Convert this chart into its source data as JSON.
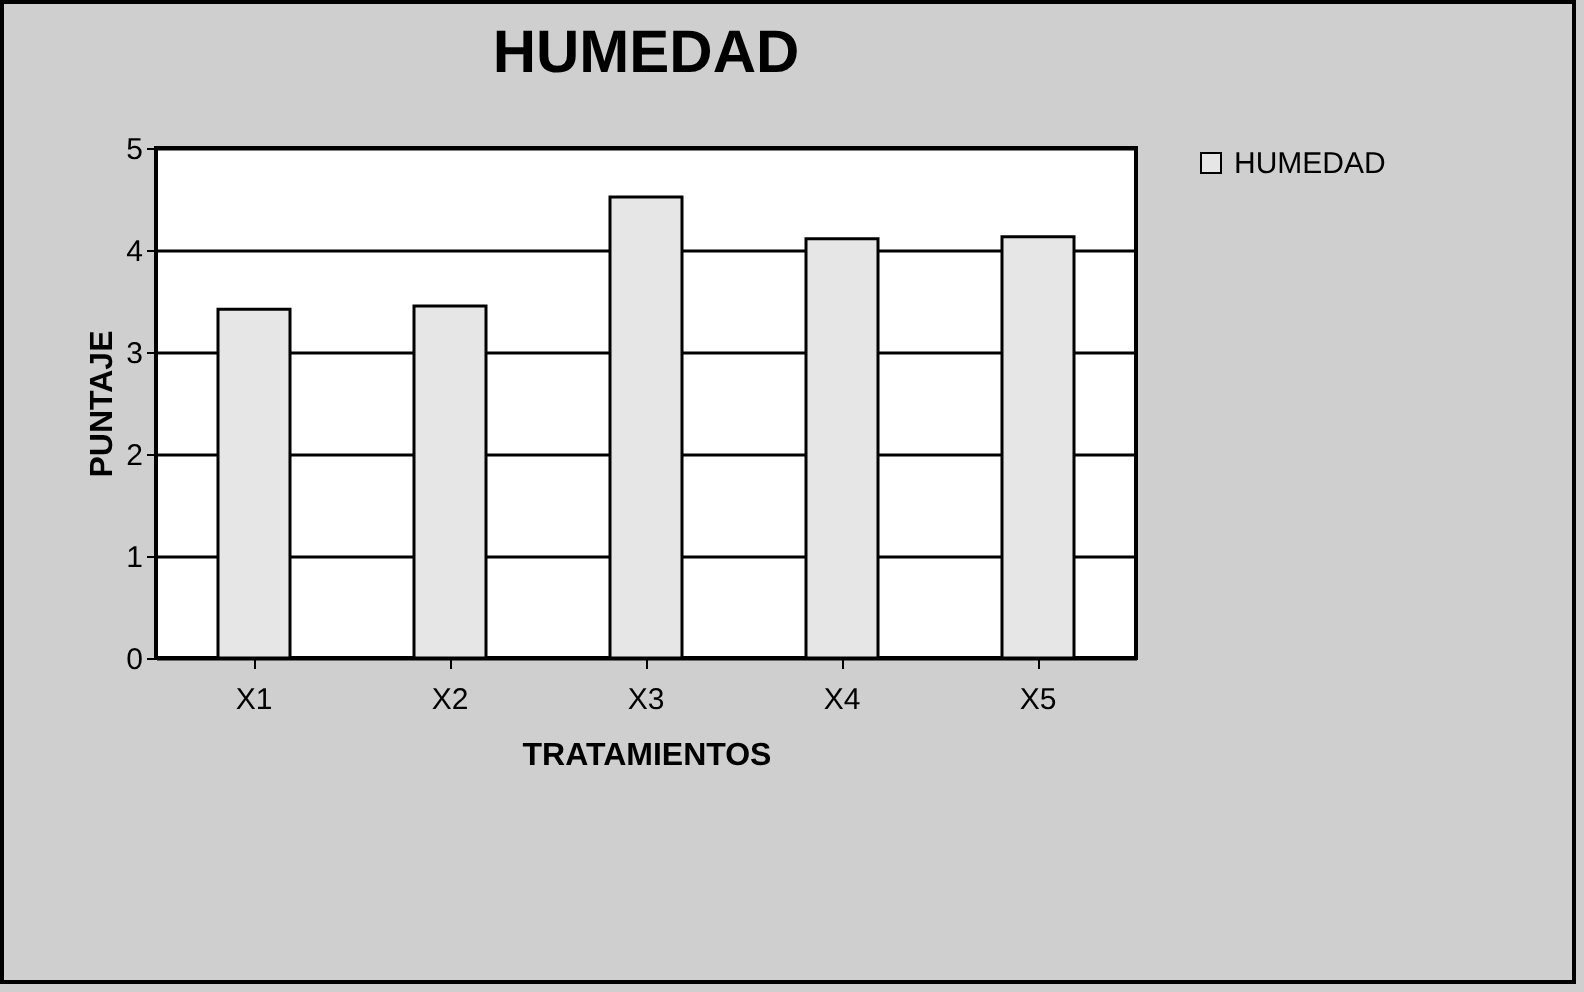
{
  "chart_data": {
    "type": "bar",
    "title": "HUMEDAD",
    "xlabel": "TRATAMIENTOS",
    "ylabel": "PUNTAJE",
    "categories": [
      "X1",
      "X2",
      "X3",
      "X4",
      "X5"
    ],
    "series": [
      {
        "name": "HUMEDAD",
        "color": "#e6e6e6",
        "values": [
          3.42,
          3.45,
          4.52,
          4.11,
          4.13
        ]
      }
    ],
    "ylim": [
      0,
      5
    ],
    "yticks": [
      0,
      1,
      2,
      3,
      4,
      5
    ],
    "grid": "y",
    "legend": "right"
  }
}
